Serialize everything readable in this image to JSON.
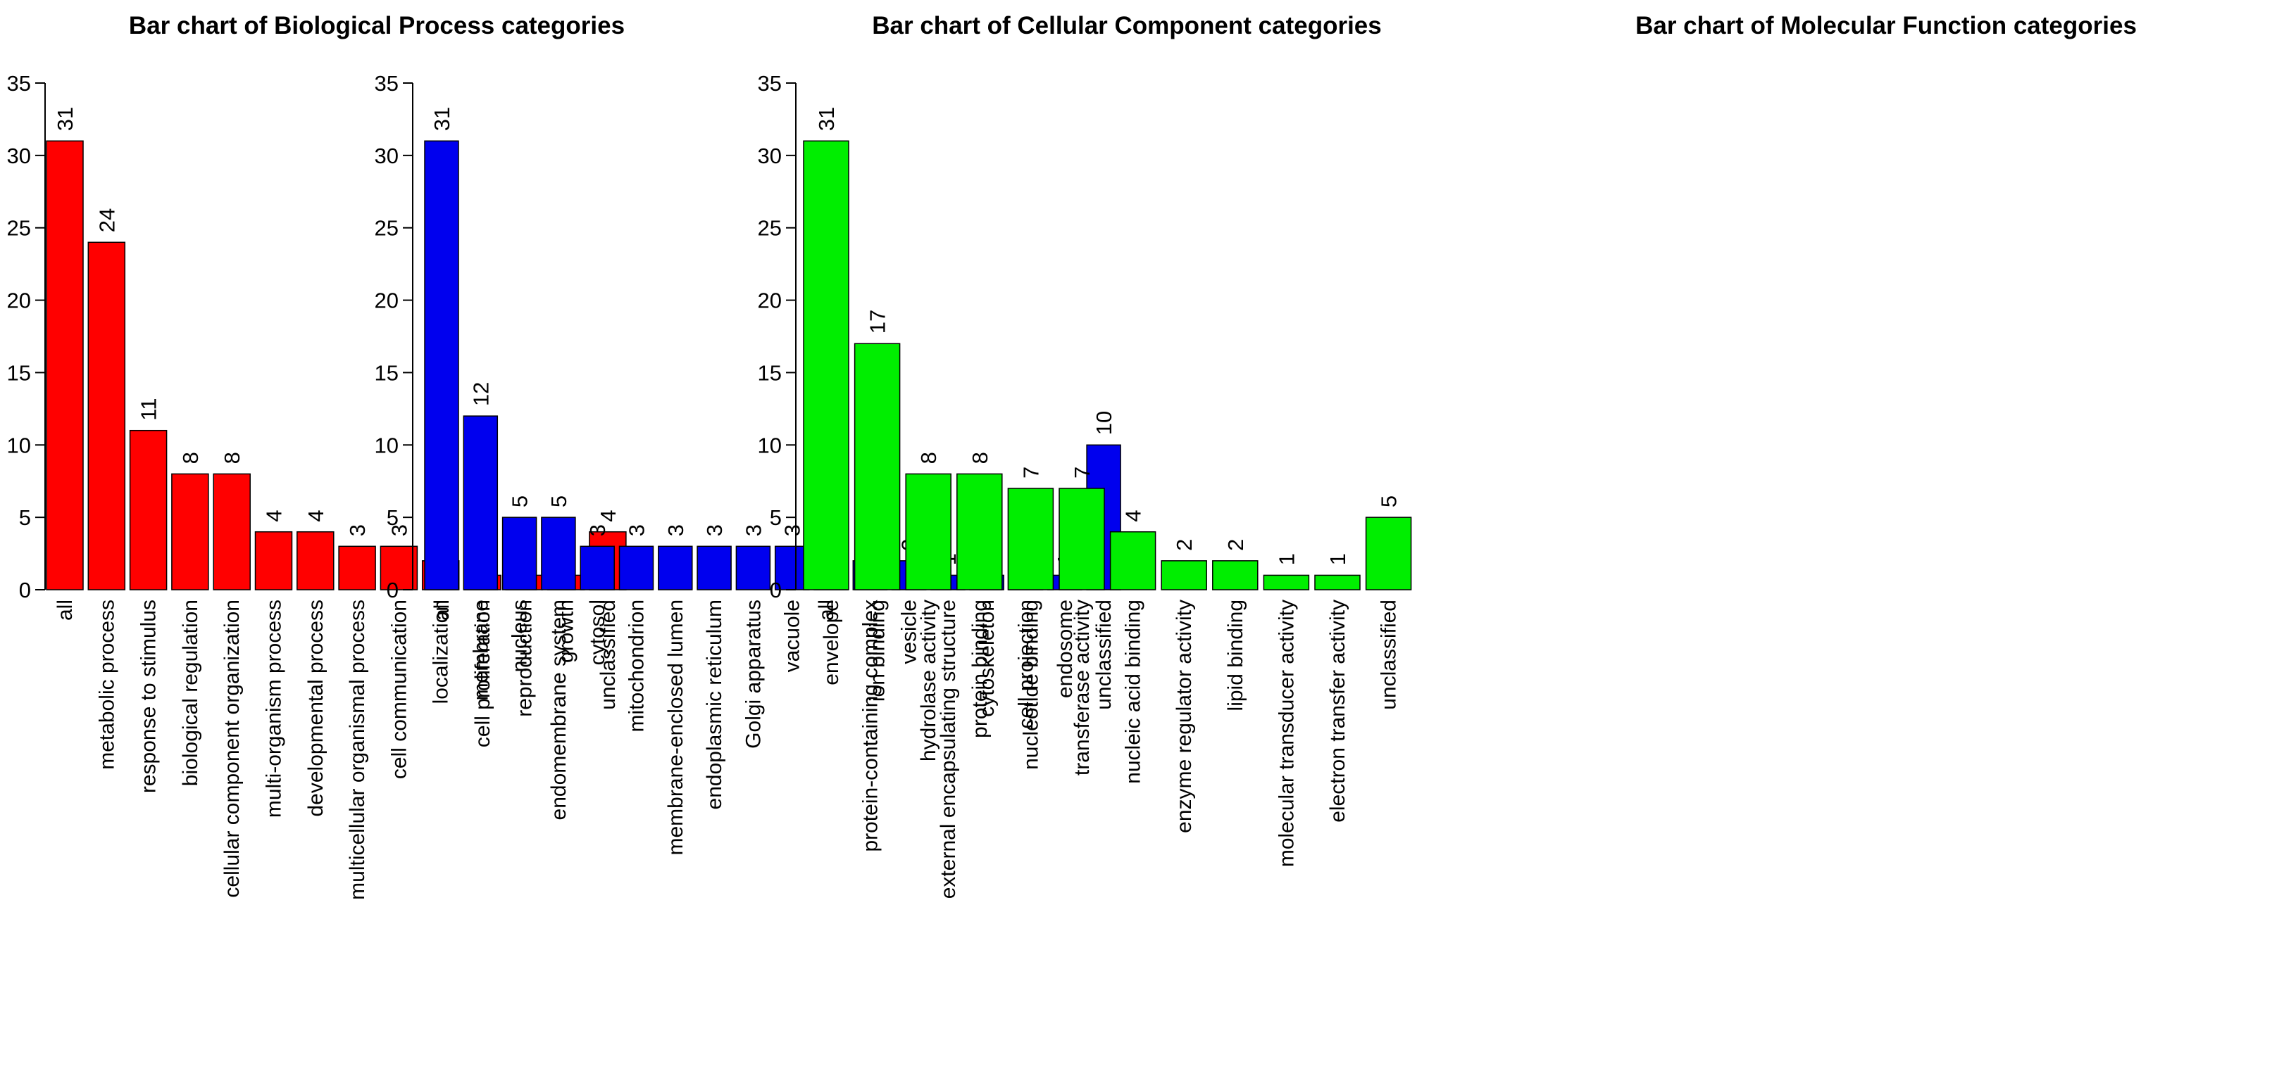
{
  "chart_data": [
    {
      "type": "bar",
      "title": "Bar chart of Biological Process categories",
      "color": "#ff0000",
      "ylim": [
        0,
        35
      ],
      "yticks": [
        0,
        5,
        10,
        15,
        20,
        25,
        30,
        35
      ],
      "xlabel": "",
      "ylabel": "",
      "categories": [
        "all",
        "metabolic process",
        "response to stimulus",
        "biological regulation",
        "cellular component organization",
        "multi-organism process",
        "developmental process",
        "multicellular organismal process",
        "cell communication",
        "localization",
        "cell proliferation",
        "reproduction",
        "growth",
        "unclassified"
      ],
      "values": [
        31,
        24,
        11,
        8,
        8,
        4,
        4,
        3,
        3,
        2,
        1,
        1,
        1,
        4
      ]
    },
    {
      "type": "bar",
      "title": "Bar chart of Cellular Component categories",
      "color": "#0000ee",
      "ylim": [
        0,
        35
      ],
      "yticks": [
        0,
        5,
        10,
        15,
        20,
        25,
        30,
        35
      ],
      "xlabel": "",
      "ylabel": "",
      "categories": [
        "all",
        "membrane",
        "nucleus",
        "endomembrane system",
        "cytosol",
        "mitochondrion",
        "membrane-enclosed lumen",
        "endoplasmic reticulum",
        "Golgi apparatus",
        "vacuole",
        "envelope",
        "protein-containing complex",
        "vesicle",
        "external encapsulating structure",
        "cytoskeleton",
        "cell projection",
        "endosome",
        "unclassified"
      ],
      "values": [
        31,
        12,
        5,
        5,
        3,
        3,
        3,
        3,
        3,
        3,
        2,
        2,
        2,
        1,
        1,
        1,
        1,
        10
      ]
    },
    {
      "type": "bar",
      "title": "Bar chart of Molecular Function categories",
      "color": "#00ee00",
      "ylim": [
        0,
        35
      ],
      "yticks": [
        0,
        5,
        10,
        15,
        20,
        25,
        30,
        35
      ],
      "xlabel": "",
      "ylabel": "",
      "categories": [
        "all",
        "ion binding",
        "hydrolase activity",
        "protein binding",
        "nucleotide binding",
        "transferase activity",
        "nucleic acid binding",
        "enzyme regulator activity",
        "lipid binding",
        "molecular transducer activity",
        "electron transfer activity",
        "unclassified"
      ],
      "values": [
        31,
        17,
        8,
        8,
        7,
        7,
        4,
        2,
        2,
        1,
        1,
        5
      ]
    }
  ]
}
